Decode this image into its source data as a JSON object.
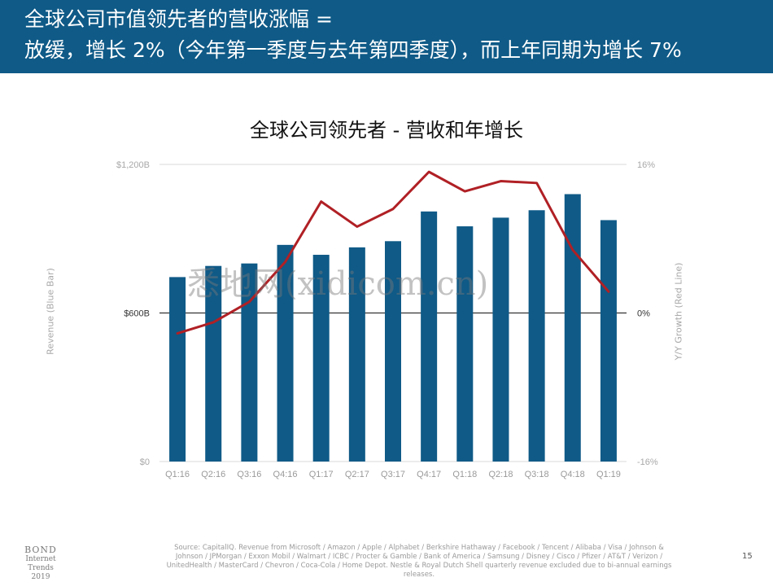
{
  "header": {
    "line1": "全球公司市值领先者的营收涨幅 =",
    "line2": "放缓，增长 2%（今年第一季度与去年第四季度），而上年同期为增长 7%"
  },
  "watermark_text": "悉地网(xidicom.cn)",
  "source_text": "Source: CapitalIQ. Revenue from Microsoft / Amazon / Apple / Alphabet / Berkshire Hathaway / Facebook / Tencent / Alibaba / Visa / Johnson & Johnson / JPMorgan / Exxon Mobil / Walmart / ICBC / Procter & Gamble / Bank of America / Samsung / Disney / Cisco / Pfizer / AT&T / Verizon / UnitedHealth / MasterCard / Chevron / Coca-Cola / Home Depot. Nestle & Royal Dutch Shell quarterly revenue excluded due to bi-annual earnings releases.",
  "page_number": "15",
  "logo": {
    "line1": "BOND",
    "line2": "Internet Trends",
    "line3": "2019"
  },
  "colors": {
    "header_bg": "#0f5a87",
    "bar": "#0f5a87",
    "line": "#b02025"
  },
  "chart_data": {
    "type": "bar",
    "title": "全球公司领先者 - 营收和年增长",
    "categories": [
      "Q1:16",
      "Q2:16",
      "Q3:16",
      "Q4:16",
      "Q1:17",
      "Q2:17",
      "Q3:17",
      "Q4:17",
      "Q1:18",
      "Q2:18",
      "Q3:18",
      "Q4:18",
      "Q1:19"
    ],
    "series": [
      {
        "name": "Revenue (Blue Bar)",
        "type": "bar",
        "axis": "left",
        "values": [
          745,
          790,
          800,
          875,
          835,
          865,
          890,
          1010,
          950,
          985,
          1015,
          1080,
          975
        ]
      },
      {
        "name": "Y/Y Growth (Red Line)",
        "type": "line",
        "axis": "right",
        "values": [
          -2.2,
          -1.0,
          1.2,
          5.5,
          12.0,
          9.3,
          11.2,
          15.2,
          13.1,
          14.2,
          14.0,
          6.8,
          2.3
        ]
      }
    ],
    "ylabel": "Revenue (Blue Bar)",
    "y2label": "Y/Y Growth (Red Line)",
    "ylim": [
      0,
      1200
    ],
    "y2lim": [
      -16,
      16
    ],
    "y_ticks": [
      "$0",
      "$600B",
      "$1,200B"
    ],
    "y2_ticks": [
      "-16%",
      "0%",
      "16%"
    ],
    "y_tick_values": [
      0,
      600,
      1200
    ],
    "y2_tick_values": [
      -16,
      0,
      16
    ],
    "grid": true
  }
}
